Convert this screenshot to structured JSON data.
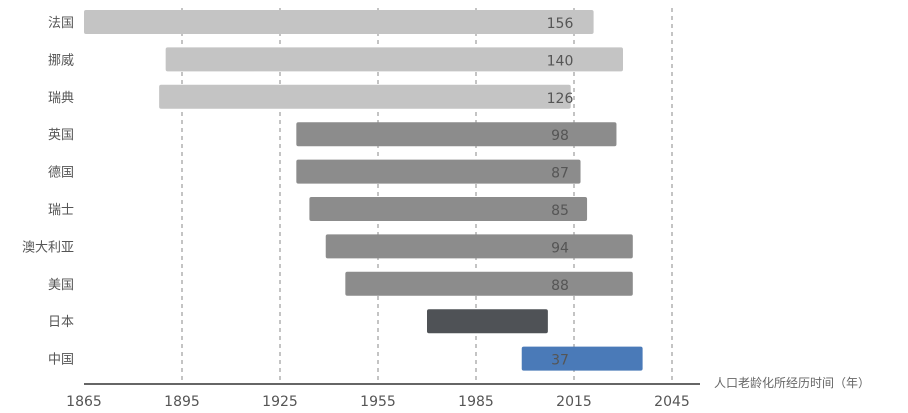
{
  "chart_data": {
    "type": "bar",
    "orientation": "horizontal",
    "categories": [
      "法国",
      "挪威",
      "瑞典",
      "英国",
      "德国",
      "瑞士",
      "澳大利亚",
      "美国",
      "日本",
      "中国"
    ],
    "start": [
      1865,
      1890,
      1888,
      1930,
      1930,
      1934,
      1939,
      1945,
      1970,
      1999
    ],
    "end": [
      2021,
      2030,
      2014,
      2028,
      2017,
      2019,
      2033,
      2033,
      2007,
      2036
    ],
    "values": [
      156,
      140,
      126,
      98,
      87,
      85,
      94,
      88,
      null,
      37
    ],
    "value_labels": [
      "156",
      "140",
      "126",
      "98",
      "87",
      "85",
      "94",
      "88",
      "",
      "37"
    ],
    "bar_colors": [
      "#c4c4c4",
      "#c4c4c4",
      "#c4c4c4",
      "#8c8c8c",
      "#8c8c8c",
      "#8c8c8c",
      "#8c8c8c",
      "#8c8c8c",
      "#4f5256",
      "#4a7ab8"
    ],
    "value_label_color_highlight": "#ffffff",
    "x_ticks": [
      1865,
      1895,
      1925,
      1955,
      1985,
      2015,
      2045
    ],
    "xlim": [
      1865,
      2045
    ],
    "xlabel": "人口老龄化所经历时间（年）",
    "grid": "vertical dashed",
    "axis_color": "#333333",
    "grid_color": "#888888"
  }
}
